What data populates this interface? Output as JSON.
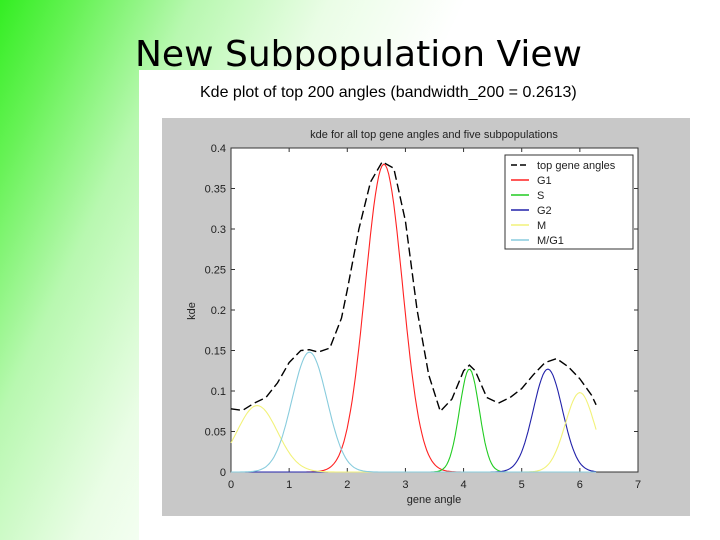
{
  "slide": {
    "title": "New Subpopulation View",
    "subtitle": "Kde plot of top 200 angles  (bandwidth_200 = 0.2613)"
  },
  "chart_data": {
    "type": "line",
    "title": "kde for all top gene angles and five subpopulations",
    "xlabel": "gene angle",
    "ylabel": "kde",
    "xlim": [
      0,
      7
    ],
    "ylim": [
      0,
      0.4
    ],
    "xticks": [
      0,
      1,
      2,
      3,
      4,
      5,
      6,
      7
    ],
    "yticks": [
      0,
      0.05,
      0.1,
      0.15,
      0.2,
      0.25,
      0.3,
      0.35,
      0.4
    ],
    "yticklabels": [
      "0",
      "0.05",
      "0.1",
      "0.15",
      "0.2",
      "0.25",
      "0.3",
      "0.35",
      "0.4"
    ],
    "grid": false,
    "legend_position": "top-right",
    "series": [
      {
        "name": "top gene angles",
        "color": "#000000",
        "dash": "9,4",
        "x": [
          0,
          0.2,
          0.4,
          0.6,
          0.8,
          1.0,
          1.2,
          1.35,
          1.5,
          1.7,
          1.9,
          2.0,
          2.2,
          2.4,
          2.6,
          2.8,
          3.0,
          3.2,
          3.4,
          3.6,
          3.8,
          4.0,
          4.1,
          4.2,
          4.4,
          4.6,
          4.8,
          5.0,
          5.2,
          5.4,
          5.6,
          5.8,
          6.0,
          6.2,
          6.28
        ],
        "y": [
          0.078,
          0.076,
          0.085,
          0.092,
          0.11,
          0.135,
          0.15,
          0.151,
          0.148,
          0.153,
          0.19,
          0.225,
          0.3,
          0.358,
          0.383,
          0.375,
          0.31,
          0.2,
          0.12,
          0.075,
          0.09,
          0.125,
          0.132,
          0.125,
          0.092,
          0.085,
          0.092,
          0.103,
          0.12,
          0.135,
          0.14,
          0.13,
          0.115,
          0.095,
          0.083
        ]
      },
      {
        "name": "G1",
        "color": "#ff2222",
        "mu": 2.63,
        "sigma": 0.32,
        "amp": 0.38,
        "range": [
          0,
          6.28
        ]
      },
      {
        "name": "S",
        "color": "#22cc22",
        "mu": 4.1,
        "sigma": 0.17,
        "amp": 0.127,
        "range": [
          0,
          6.28
        ]
      },
      {
        "name": "G2",
        "color": "#2222aa",
        "mu": 5.45,
        "sigma": 0.25,
        "amp": 0.127,
        "range": [
          0,
          6.28
        ]
      },
      {
        "name": "M",
        "color": "#f2f27a",
        "mu": 0.45,
        "sigma": 0.35,
        "amp": 0.082,
        "mu2": 6.0,
        "sigma2": 0.25,
        "amp2": 0.098,
        "range": [
          0,
          6.28
        ]
      },
      {
        "name": "M/G1",
        "color": "#88ccdd",
        "mu": 1.35,
        "sigma": 0.3,
        "amp": 0.148,
        "range": [
          0,
          6.28
        ]
      }
    ]
  }
}
